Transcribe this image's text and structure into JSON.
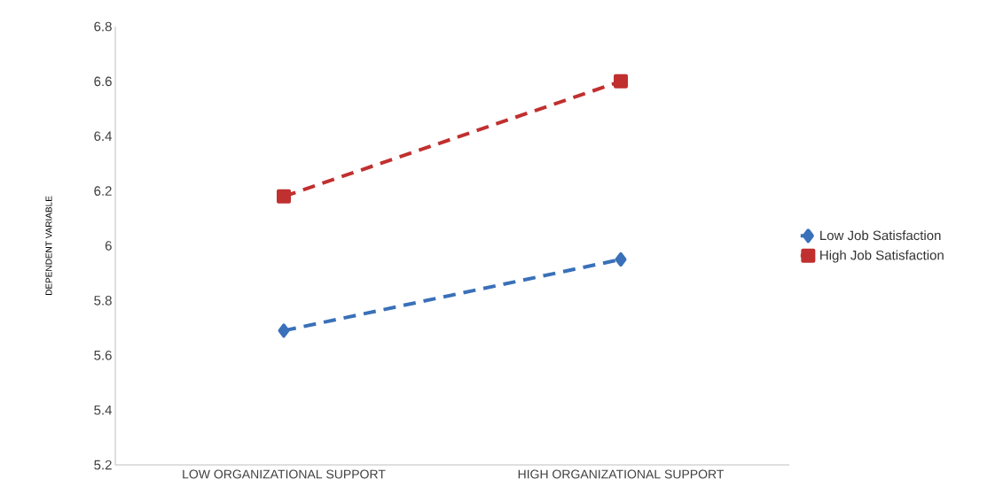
{
  "chart_data": {
    "type": "line",
    "ylabel": "DEPENDENT VARIABLE",
    "categories": [
      "LOW ORGANIZATIONAL SUPPORT",
      "HIGH ORGANIZATIONAL SUPPORT"
    ],
    "series": [
      {
        "name": "Low Job Satisfaction",
        "color": "#3a70b9",
        "values": [
          5.69,
          5.95
        ],
        "marker": "diamond",
        "line_style": "dashed"
      },
      {
        "name": "High Job Satisfaction",
        "color": "#c0302f",
        "values": [
          6.18,
          6.6
        ],
        "marker": "square",
        "line_style": "dashed"
      }
    ],
    "ylim": [
      5.2,
      6.8
    ],
    "yticks": [
      5.2,
      5.4,
      5.6,
      5.8,
      6,
      6.2,
      6.4,
      6.6,
      6.8
    ],
    "grid": false,
    "legend": "right"
  }
}
